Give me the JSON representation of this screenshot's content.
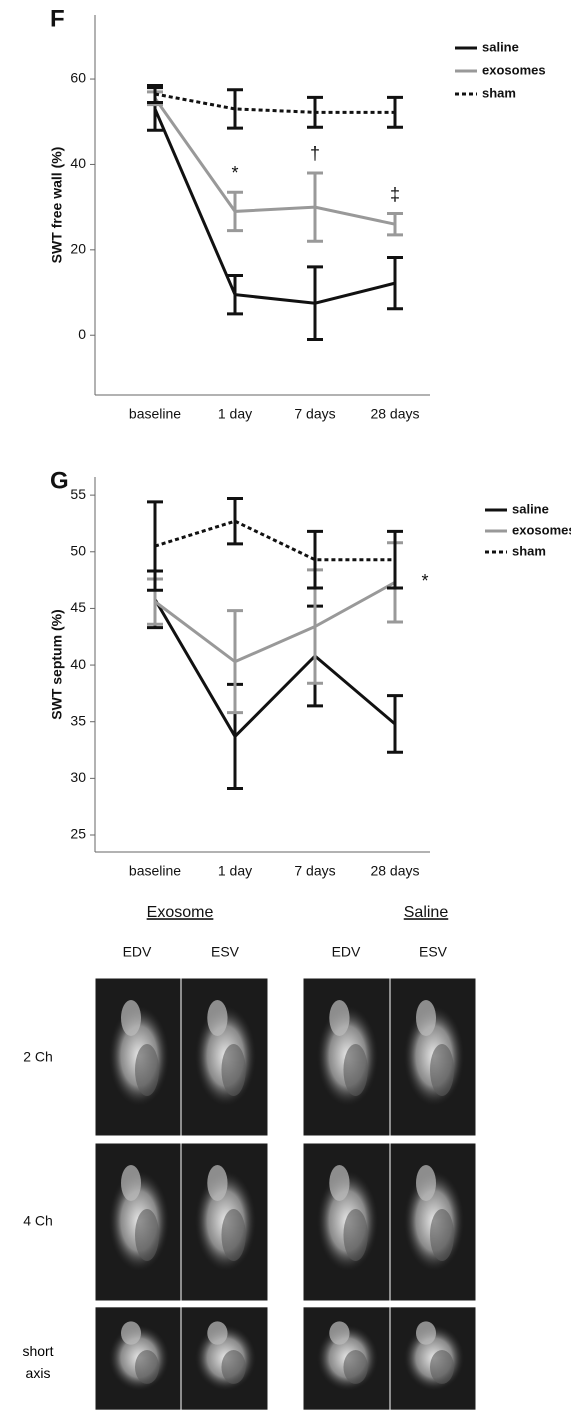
{
  "chart_data": [
    {
      "type": "line",
      "panel": "F",
      "ylabel": "SWT free wall  (%)",
      "categories": [
        "baseline",
        "1 day",
        "7 days",
        "28 days"
      ],
      "series": [
        {
          "name": "saline",
          "color": "#111111",
          "style": "solid",
          "values": [
            53,
            9.5,
            7.5,
            12.2
          ],
          "errors": [
            5,
            4.5,
            8.5,
            6
          ]
        },
        {
          "name": "exosomes",
          "color": "#999999",
          "style": "solid",
          "values": [
            55.5,
            29,
            30,
            26
          ],
          "errors": [
            1.5,
            4.5,
            8,
            2.5
          ]
        },
        {
          "name": "sham",
          "color": "#111111",
          "style": "dotted",
          "values": [
            56.5,
            53,
            52.2,
            52.2
          ],
          "errors": [
            2,
            4.5,
            3.5,
            3.5
          ]
        }
      ],
      "ylim": [
        -14,
        75
      ],
      "yticks": [
        0,
        20,
        40,
        60
      ],
      "legend": "upper right",
      "annotations": [
        {
          "text": "*",
          "category": "1 day"
        },
        {
          "text": "†",
          "category": "7 days"
        },
        {
          "text": "‡",
          "category": "28 days"
        }
      ]
    },
    {
      "type": "line",
      "panel": "G",
      "ylabel": "SWT septum  (%)",
      "categories": [
        "baseline",
        "1 day",
        "7 days",
        "28 days"
      ],
      "series": [
        {
          "name": "saline",
          "color": "#111111",
          "style": "solid",
          "values": [
            45.8,
            33.7,
            40.8,
            34.8
          ],
          "errors": [
            2.5,
            4.6,
            4.4,
            2.5
          ]
        },
        {
          "name": "exosomes",
          "color": "#999999",
          "style": "solid",
          "values": [
            45.6,
            40.3,
            43.4,
            47.3
          ],
          "errors": [
            2,
            4.5,
            5,
            3.5
          ]
        },
        {
          "name": "sham",
          "color": "#111111",
          "style": "dotted",
          "values": [
            50.5,
            52.7,
            49.3,
            49.3
          ],
          "errors": [
            3.9,
            2,
            2.5,
            2.5
          ]
        }
      ],
      "ylim": [
        23.5,
        56.6
      ],
      "yticks": [
        25,
        30,
        35,
        40,
        45,
        50,
        55
      ],
      "legend": "upper right",
      "annotations": [
        {
          "text": "*",
          "category": "28 days"
        }
      ]
    }
  ],
  "mri_figure": {
    "groups": [
      "Exosome",
      "Saline"
    ],
    "columns": [
      "EDV",
      "ESV",
      "EDV",
      "ESV"
    ],
    "rows": [
      "2 Ch",
      "4 Ch",
      "short axis"
    ]
  }
}
